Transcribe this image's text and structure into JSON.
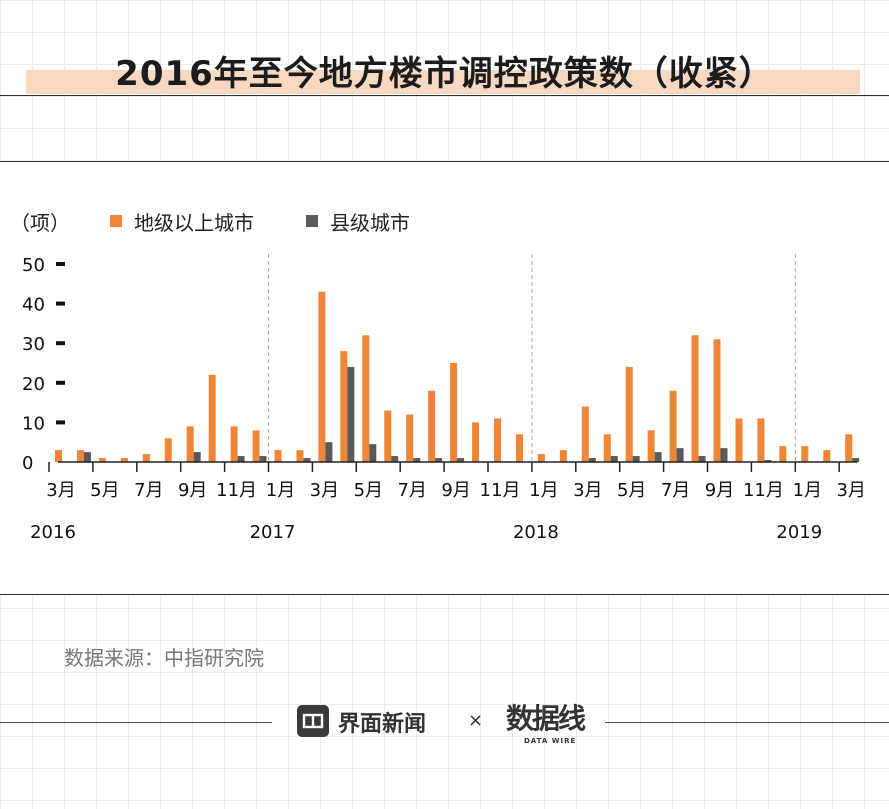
{
  "title": "2016年至今地方楼市调控政策数（收紧）",
  "colors": {
    "orange": "#f08535",
    "gray": "#5a5a5a",
    "title_highlight": "#f9d8c1"
  },
  "chart_data": {
    "type": "bar",
    "unit_label": "（项）",
    "ylim": [
      0,
      50
    ],
    "y_ticks": [
      "0",
      "10",
      "20",
      "30",
      "40",
      "50"
    ],
    "categories": [
      "2016-03",
      "2016-04",
      "2016-05",
      "2016-06",
      "2016-07",
      "2016-08",
      "2016-09",
      "2016-10",
      "2016-11",
      "2016-12",
      "2017-01",
      "2017-02",
      "2017-03",
      "2017-04",
      "2017-05",
      "2017-06",
      "2017-07",
      "2017-08",
      "2017-09",
      "2017-10",
      "2017-11",
      "2017-12",
      "2018-01",
      "2018-02",
      "2018-03",
      "2018-04",
      "2018-05",
      "2018-06",
      "2018-07",
      "2018-08",
      "2018-09",
      "2018-10",
      "2018-11",
      "2018-12",
      "2019-01",
      "2019-02",
      "2019-03"
    ],
    "x_tick_labels": [
      "3月",
      "5月",
      "7月",
      "9月",
      "11月",
      "1月",
      "3月",
      "5月",
      "7月",
      "9月",
      "11月",
      "1月",
      "3月",
      "5月",
      "7月",
      "9月",
      "11月",
      "1月",
      "3月"
    ],
    "x_tick_categories": [
      "2016-03",
      "2016-05",
      "2016-07",
      "2016-09",
      "2016-11",
      "2017-01",
      "2017-03",
      "2017-05",
      "2017-07",
      "2017-09",
      "2017-11",
      "2018-01",
      "2018-03",
      "2018-05",
      "2018-07",
      "2018-09",
      "2018-11",
      "2019-01",
      "2019-03"
    ],
    "years": [
      {
        "label": "2016",
        "category": "2016-03"
      },
      {
        "label": "2017",
        "category": "2017-01"
      },
      {
        "label": "2018",
        "category": "2018-01"
      },
      {
        "label": "2019",
        "category": "2019-01"
      }
    ],
    "series": [
      {
        "name": "地级以上城市",
        "color": "#f08535",
        "values": [
          3,
          3,
          1,
          1,
          2,
          6,
          9,
          22,
          9,
          8,
          3,
          3,
          43,
          28,
          32,
          13,
          12,
          18,
          25,
          10,
          11,
          7,
          2,
          3,
          14,
          7,
          24,
          8,
          18,
          32,
          31,
          11,
          11,
          4,
          4,
          3,
          7
        ]
      },
      {
        "name": "县级城市",
        "color": "#5a5a5a",
        "values": [
          0,
          2.5,
          0,
          0,
          0,
          0,
          2.5,
          0,
          1.5,
          1.5,
          0,
          1,
          5,
          24,
          4.5,
          1.5,
          1,
          1,
          1,
          0,
          0,
          0,
          0,
          0,
          1,
          1.5,
          1.5,
          2.5,
          3.5,
          1.5,
          3.5,
          0,
          0.5,
          0,
          0,
          0,
          1
        ]
      }
    ]
  },
  "source": "数据来源：中指研究院",
  "footer": {
    "brand": "界面新闻",
    "times": "×",
    "partner_mark": "数据线",
    "partner_sub": "DATA WIRE"
  }
}
